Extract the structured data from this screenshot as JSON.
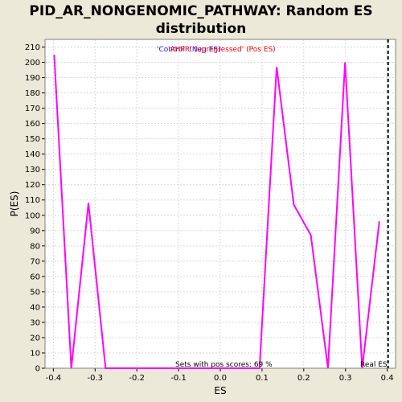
{
  "chart_data": {
    "type": "line",
    "title_line1": "PID_AR_NONGENOMIC_PATHWAY: Random ES",
    "title_line2": "distribution",
    "xlabel": "ES",
    "ylabel": "P(ES)",
    "xlim": [
      -0.42,
      0.42
    ],
    "ylim": [
      0,
      215
    ],
    "xticks": [
      -0.4,
      -0.3,
      -0.2,
      -0.1,
      0.0,
      0.1,
      0.2,
      0.3,
      0.4
    ],
    "xtick_labels": [
      "-0.4",
      "-0.3",
      "-0.2",
      "-0.1",
      "0.0",
      "0.1",
      "0.2",
      "0.3",
      "0.4"
    ],
    "yticks": [
      0,
      10,
      20,
      30,
      40,
      50,
      60,
      70,
      80,
      90,
      100,
      110,
      120,
      130,
      140,
      150,
      160,
      170,
      180,
      190,
      200,
      210
    ],
    "grid": true,
    "series": [
      {
        "color": "#ff00ff",
        "x": [
          -0.398,
          -0.357,
          -0.316,
          -0.275,
          -0.234,
          -0.193,
          -0.152,
          -0.111,
          -0.07,
          -0.029,
          0.012,
          0.053,
          0.094,
          0.135,
          0.176,
          0.217,
          0.258,
          0.299,
          0.34,
          0.381
        ],
        "y": [
          205,
          0,
          108,
          0,
          0,
          0,
          0,
          0,
          0,
          0,
          0,
          0,
          0,
          197,
          107,
          87,
          0,
          200,
          0,
          96
        ]
      }
    ],
    "real_es": {
      "x": 0.402,
      "label": "Real ES",
      "color": "#000000"
    },
    "legend": [
      {
        "text": "'Control' (Neg ES)",
        "color": "#1a1aff"
      },
      {
        "text": "'AHPR' (upregressed' (Pos ES)",
        "color": "#ff0000"
      }
    ],
    "annotation": "Sets with pos scores: 69 %"
  },
  "colors": {
    "background": "#ece9d8",
    "plot_background": "#ffffff",
    "grid": "#d8d8d8"
  }
}
